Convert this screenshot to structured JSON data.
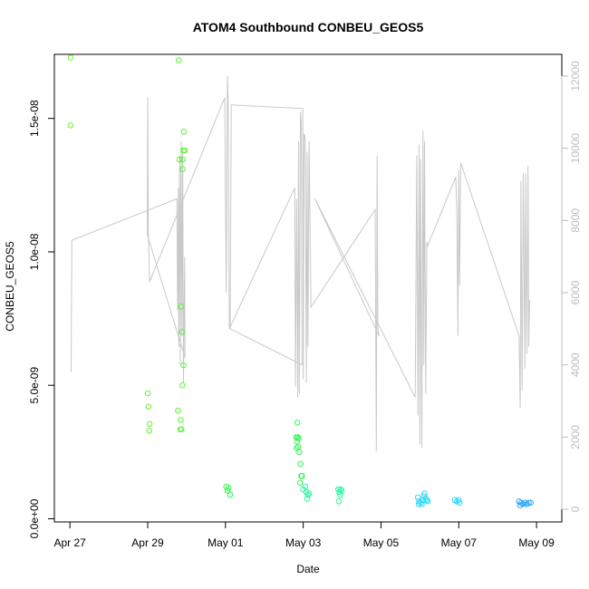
{
  "chart_data": {
    "type": "scatter",
    "title": "ATOM4 Southbound CONBEU_GEOS5",
    "xlabel": "Date",
    "ylabel": "CONBEU_GEOS5",
    "x_ticks": [
      "Apr 27",
      "Apr 29",
      "May 01",
      "May 03",
      "May 05",
      "May 07",
      "May 09"
    ],
    "y_ticks": [
      {
        "value": 0,
        "label": "0.0e+00"
      },
      {
        "value": 5e-09,
        "label": "5.0e-09"
      },
      {
        "value": 1e-08,
        "label": "1.0e-08"
      },
      {
        "value": 1.5e-08,
        "label": "1.5e-08"
      }
    ],
    "y2_ticks": [
      0,
      2000,
      4000,
      6000,
      8000,
      10000,
      12000
    ],
    "xlim": [
      -0.4,
      12.65
    ],
    "ylim": [
      -1.2e-10,
      1.74e-08
    ],
    "y2lim": [
      -350,
      12600
    ],
    "grid": false,
    "series": [
      {
        "role": "points",
        "marker": "open-circle",
        "points": [
          {
            "x": 0.02,
            "y": 1.728e-08,
            "color": "#6cf52a"
          },
          {
            "x": 0.02,
            "y": 1.474e-08,
            "color": "#6cf52a"
          },
          {
            "x": 2.0,
            "y": 4.7e-09,
            "color": "#5ef52e"
          },
          {
            "x": 2.02,
            "y": 4.2e-09,
            "color": "#5ef52e"
          },
          {
            "x": 2.05,
            "y": 3.55e-09,
            "color": "#5ef52e"
          },
          {
            "x": 2.04,
            "y": 3.3e-09,
            "color": "#5ef52e"
          },
          {
            "x": 2.8,
            "y": 1.718e-08,
            "color": "#55f530"
          },
          {
            "x": 2.78,
            "y": 4.05e-09,
            "color": "#55f530"
          },
          {
            "x": 2.82,
            "y": 1.346e-08,
            "color": "#55f530"
          },
          {
            "x": 2.85,
            "y": 3.7e-09,
            "color": "#55f530"
          },
          {
            "x": 2.84,
            "y": 3.35e-09,
            "color": "#55f530"
          },
          {
            "x": 2.87,
            "y": 3.35e-09,
            "color": "#55f530"
          },
          {
            "x": 2.86,
            "y": 7.95e-09,
            "color": "#55f530"
          },
          {
            "x": 2.88,
            "y": 7e-09,
            "color": "#55f530"
          },
          {
            "x": 2.9,
            "y": 1.346e-08,
            "color": "#55f530"
          },
          {
            "x": 2.9,
            "y": 1.31e-08,
            "color": "#55f530"
          },
          {
            "x": 2.92,
            "y": 1.38e-08,
            "color": "#55f530"
          },
          {
            "x": 2.95,
            "y": 1.38e-08,
            "color": "#55f530"
          },
          {
            "x": 2.93,
            "y": 1.45e-08,
            "color": "#55f530"
          },
          {
            "x": 2.92,
            "y": 5.75e-09,
            "color": "#55f530"
          },
          {
            "x": 2.89,
            "y": 5e-09,
            "color": "#55f530"
          },
          {
            "x": 4.02,
            "y": 1.2e-09,
            "color": "#33f54a"
          },
          {
            "x": 4.05,
            "y": 1.05e-09,
            "color": "#33f54a"
          },
          {
            "x": 4.08,
            "y": 1.15e-09,
            "color": "#33f54a"
          },
          {
            "x": 4.12,
            "y": 9e-10,
            "color": "#33f54a"
          },
          {
            "x": 5.85,
            "y": 3.6e-09,
            "color": "#2ef555"
          },
          {
            "x": 5.82,
            "y": 3.05e-09,
            "color": "#2ef555"
          },
          {
            "x": 5.86,
            "y": 3.05e-09,
            "color": "#2ef555"
          },
          {
            "x": 5.88,
            "y": 3e-09,
            "color": "#2ef555"
          },
          {
            "x": 5.84,
            "y": 2.9e-09,
            "color": "#2ef555"
          },
          {
            "x": 5.87,
            "y": 2.7e-09,
            "color": "#2ef555"
          },
          {
            "x": 5.83,
            "y": 2.65e-09,
            "color": "#2ef555"
          },
          {
            "x": 5.9,
            "y": 2.5e-09,
            "color": "#2ef555"
          },
          {
            "x": 5.93,
            "y": 2.05e-09,
            "color": "#2ef555"
          },
          {
            "x": 5.97,
            "y": 1.6e-09,
            "color": "#2ef555"
          },
          {
            "x": 5.95,
            "y": 1.6e-09,
            "color": "#2ef555"
          },
          {
            "x": 5.92,
            "y": 1.35e-09,
            "color": "#2ef555"
          },
          {
            "x": 6.0,
            "y": 1.1e-09,
            "color": "#2bf5a0"
          },
          {
            "x": 6.05,
            "y": 1.2e-09,
            "color": "#2bf5a0"
          },
          {
            "x": 6.08,
            "y": 1e-09,
            "color": "#2bf5a0"
          },
          {
            "x": 6.12,
            "y": 9e-10,
            "color": "#2bf5a0"
          },
          {
            "x": 6.1,
            "y": 7.5e-10,
            "color": "#2bf5a0"
          },
          {
            "x": 6.15,
            "y": 9.5e-10,
            "color": "#2bf5a0"
          },
          {
            "x": 6.9,
            "y": 1.1e-09,
            "color": "#2bf5a0"
          },
          {
            "x": 6.93,
            "y": 1e-09,
            "color": "#2bf5a0"
          },
          {
            "x": 6.96,
            "y": 1.1e-09,
            "color": "#2bf5a0"
          },
          {
            "x": 6.99,
            "y": 1.05e-09,
            "color": "#2bf5a0"
          },
          {
            "x": 6.95,
            "y": 9e-10,
            "color": "#2bf5a0"
          },
          {
            "x": 6.92,
            "y": 6.5e-10,
            "color": "#2bf5a0"
          },
          {
            "x": 8.95,
            "y": 8e-10,
            "color": "#2bd8f5"
          },
          {
            "x": 8.98,
            "y": 6.5e-10,
            "color": "#2bd8f5"
          },
          {
            "x": 9.02,
            "y": 6e-10,
            "color": "#2bd8f5"
          },
          {
            "x": 9.05,
            "y": 5.5e-10,
            "color": "#2bd8f5"
          },
          {
            "x": 9.08,
            "y": 7e-10,
            "color": "#2bd8f5"
          },
          {
            "x": 9.1,
            "y": 8.5e-10,
            "color": "#2bd8f5"
          },
          {
            "x": 9.12,
            "y": 9.5e-10,
            "color": "#2bd8f5"
          },
          {
            "x": 9.15,
            "y": 7.5e-10,
            "color": "#2bd8f5"
          },
          {
            "x": 9.18,
            "y": 7e-10,
            "color": "#2bd8f5"
          },
          {
            "x": 9.2,
            "y": 6.5e-10,
            "color": "#2bd8f5"
          },
          {
            "x": 8.97,
            "y": 5.5e-10,
            "color": "#2bd8f5"
          },
          {
            "x": 9.9,
            "y": 7e-10,
            "color": "#2bd8f5"
          },
          {
            "x": 9.95,
            "y": 6.5e-10,
            "color": "#2bd8f5"
          },
          {
            "x": 10.0,
            "y": 7e-10,
            "color": "#2bd8f5"
          },
          {
            "x": 10.02,
            "y": 6e-10,
            "color": "#2bd8f5"
          },
          {
            "x": 11.55,
            "y": 6.5e-10,
            "color": "#2ba8f5"
          },
          {
            "x": 11.6,
            "y": 6e-10,
            "color": "#2ba8f5"
          },
          {
            "x": 11.65,
            "y": 5.5e-10,
            "color": "#2ba8f5"
          },
          {
            "x": 11.7,
            "y": 6e-10,
            "color": "#2ba8f5"
          },
          {
            "x": 11.75,
            "y": 5.5e-10,
            "color": "#2ba8f5"
          },
          {
            "x": 11.8,
            "y": 6e-10,
            "color": "#2ba8f5"
          },
          {
            "x": 11.85,
            "y": 6e-10,
            "color": "#2ba8f5"
          },
          {
            "x": 11.58,
            "y": 5e-10,
            "color": "#2ba8f5"
          }
        ]
      },
      {
        "role": "secondary-axis-line",
        "color": "#c8c8c8",
        "points": [
          [
            0.03,
            3800
          ],
          [
            0.05,
            7450
          ],
          [
            2.75,
            8600
          ],
          [
            2.77,
            5500
          ],
          [
            2.79,
            8900
          ],
          [
            2.8,
            4500
          ],
          [
            2.82,
            9800
          ],
          [
            2.84,
            4000
          ],
          [
            2.86,
            10200
          ],
          [
            2.88,
            4800
          ],
          [
            2.9,
            9900
          ],
          [
            2.92,
            3500
          ],
          [
            2.95,
            7000
          ],
          [
            2.96,
            4200
          ],
          [
            1.99,
            7600
          ],
          [
            2.0,
            11400
          ],
          [
            2.02,
            7500
          ],
          [
            2.05,
            6300
          ],
          [
            3.98,
            11400
          ],
          [
            4.02,
            6000
          ],
          [
            4.05,
            12000
          ],
          [
            4.07,
            11300
          ],
          [
            4.1,
            5000
          ],
          [
            5.78,
            8900
          ],
          [
            5.8,
            3400
          ],
          [
            5.83,
            8600
          ],
          [
            5.86,
            3100
          ],
          [
            5.88,
            10200
          ],
          [
            5.9,
            3200
          ],
          [
            5.93,
            11000
          ],
          [
            5.95,
            10700
          ],
          [
            5.97,
            4000
          ],
          [
            4.12,
            5000
          ],
          [
            4.15,
            11200
          ],
          [
            5.99,
            11100
          ],
          [
            6.0,
            3600
          ],
          [
            6.02,
            10400
          ],
          [
            6.05,
            10300
          ],
          [
            6.08,
            3500
          ],
          [
            6.1,
            9900
          ],
          [
            6.12,
            4500
          ],
          [
            6.15,
            10200
          ],
          [
            6.2,
            5600
          ],
          [
            7.85,
            8300
          ],
          [
            7.88,
            1600
          ],
          [
            7.9,
            9800
          ],
          [
            7.92,
            5000
          ],
          [
            7.95,
            4800
          ],
          [
            6.3,
            8600
          ],
          [
            8.88,
            3100
          ],
          [
            8.92,
            9800
          ],
          [
            8.95,
            2600
          ],
          [
            8.98,
            10100
          ],
          [
            9.0,
            1800
          ],
          [
            9.02,
            9700
          ],
          [
            9.05,
            1700
          ],
          [
            9.08,
            10500
          ],
          [
            9.1,
            4000
          ],
          [
            9.12,
            10200
          ],
          [
            9.15,
            3200
          ],
          [
            9.18,
            7400
          ],
          [
            9.2,
            7300
          ],
          [
            9.92,
            9200
          ],
          [
            9.95,
            8300
          ],
          [
            9.98,
            4800
          ],
          [
            10.0,
            9400
          ],
          [
            10.02,
            6200
          ],
          [
            10.05,
            9600
          ],
          [
            11.55,
            4800
          ],
          [
            11.58,
            2800
          ],
          [
            11.6,
            9100
          ],
          [
            11.63,
            3300
          ],
          [
            11.66,
            9300
          ],
          [
            11.7,
            3900
          ],
          [
            11.72,
            9300
          ],
          [
            11.75,
            4300
          ],
          [
            11.78,
            9500
          ],
          [
            11.8,
            4500
          ],
          [
            11.82,
            5800
          ]
        ]
      }
    ]
  }
}
